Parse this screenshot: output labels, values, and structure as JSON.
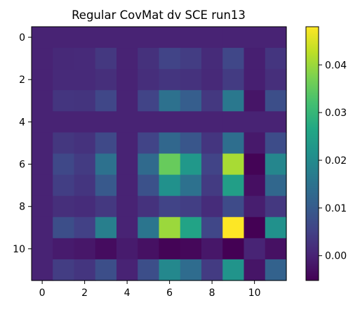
{
  "chart_data": {
    "type": "heatmap",
    "title": "Regular CovMat dv SCE run13",
    "rows": 12,
    "cols": 12,
    "x_ticks": [
      0,
      2,
      4,
      6,
      8,
      10
    ],
    "y_ticks": [
      0,
      2,
      4,
      6,
      8,
      10
    ],
    "colormap": "viridis",
    "vmin": -0.0052,
    "vmax": 0.048,
    "colorbar_ticks": [
      0.0,
      0.01,
      0.02,
      0.03,
      0.04
    ],
    "colorbar_tick_labels": [
      "0.00",
      "0.01",
      "0.02",
      "0.03",
      "0.04"
    ],
    "values": [
      [
        0,
        0,
        0,
        0,
        0,
        0,
        0,
        0,
        0,
        0,
        0,
        0
      ],
      [
        0,
        0.001,
        0.0012,
        0.0035,
        0,
        0.0022,
        0.0055,
        0.0042,
        0.0013,
        0.006,
        -0.0006,
        0.003
      ],
      [
        0,
        0.0012,
        0.0012,
        0.002,
        0,
        0.0018,
        0.003,
        0.0025,
        0.001,
        0.004,
        -0.0006,
        0.002
      ],
      [
        0,
        0.003,
        0.0028,
        0.006,
        0,
        0.0055,
        0.0145,
        0.0105,
        0.0035,
        0.016,
        -0.0022,
        0.0075
      ],
      [
        0,
        0,
        0,
        0,
        0,
        0,
        0,
        0,
        0,
        0,
        0,
        0
      ],
      [
        0,
        0.0032,
        0.0025,
        0.0065,
        0,
        0.0055,
        0.0125,
        0.009,
        0.003,
        0.014,
        -0.0015,
        0.007
      ],
      [
        0,
        0.0062,
        0.004,
        0.0145,
        0,
        0.013,
        0.0355,
        0.023,
        0.0055,
        0.041,
        -0.0048,
        0.019
      ],
      [
        0,
        0.0045,
        0.003,
        0.0095,
        0,
        0.008,
        0.0215,
        0.0145,
        0.004,
        0.0245,
        -0.003,
        0.0125
      ],
      [
        0,
        0.002,
        0.0015,
        0.0035,
        0,
        0.0025,
        0.0055,
        0.0045,
        0.0015,
        0.0068,
        -0.0008,
        0.0035
      ],
      [
        0,
        0.0075,
        0.005,
        0.0175,
        0,
        0.0155,
        0.04,
        0.0255,
        0.006,
        0.048,
        -0.0052,
        0.0215
      ],
      [
        0,
        -0.0012,
        -0.0018,
        -0.0035,
        -0.0012,
        -0.0028,
        -0.0048,
        -0.0042,
        -0.0018,
        -0.0052,
        0.0002,
        -0.0028
      ],
      [
        0,
        0.0042,
        0.003,
        0.0075,
        0,
        0.0075,
        0.0195,
        0.0135,
        0.004,
        0.022,
        -0.0022,
        0.0115
      ]
    ]
  }
}
